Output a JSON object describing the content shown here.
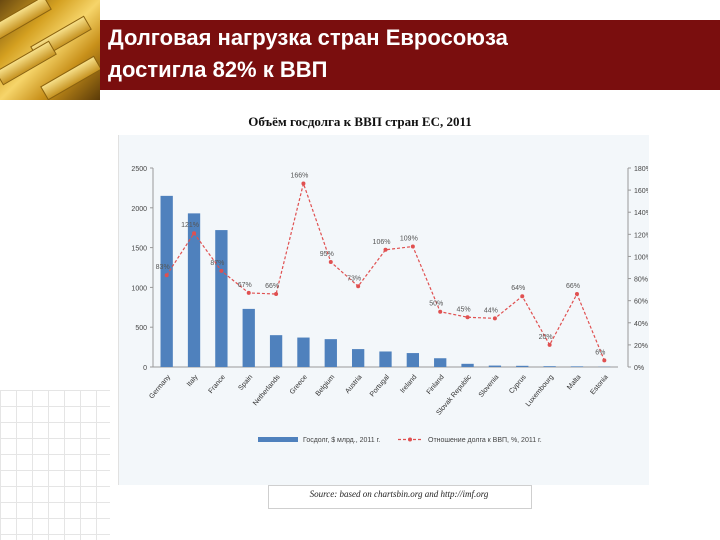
{
  "slide": {
    "title_line1": "Долговая нагрузка стран Евросоюза",
    "title_line2": "достигла 82% к ВВП",
    "source": "Source: based on chartsbin.org and http://imf.org"
  },
  "chart_data": {
    "type": "bar",
    "title": "Объём госдолга к ВВП стран ЕС, 2011",
    "categories": [
      "Germany",
      "Italy",
      "France",
      "Spain",
      "Netherlands",
      "Greece",
      "Belgium",
      "Austria",
      "Portugal",
      "Ireland",
      "Finland",
      "Slovak Republic",
      "Slovenia",
      "Cyprus",
      "Luxembourg",
      "Malta",
      "Estonia"
    ],
    "series": [
      {
        "name": "Госдолг, $ млрд., 2011 г.",
        "type": "bar",
        "axis": "left",
        "color": "#4f81bd",
        "values": [
          2150,
          1930,
          1720,
          730,
          400,
          370,
          350,
          225,
          195,
          175,
          110,
          40,
          18,
          15,
          10,
          8,
          3
        ]
      },
      {
        "name": "Отношение долга к ВВП, %, 2011 г.",
        "type": "line",
        "axis": "right",
        "color": "#e05050",
        "values": [
          83,
          121,
          87,
          67,
          66,
          166,
          95,
          73,
          106,
          109,
          50,
          45,
          44,
          64,
          20,
          66,
          6
        ]
      }
    ],
    "data_labels": [
      "83%",
      "121%",
      "87%",
      "67%",
      "66%",
      "166%",
      "95%",
      "73%",
      "106%",
      "109%",
      "50%",
      "45%",
      "44%",
      "64%",
      "20%",
      "66%",
      "6%"
    ],
    "left_axis": {
      "ticks": [
        "0",
        "500",
        "1000",
        "1500",
        "2000",
        "2500"
      ],
      "range": [
        0,
        2500
      ]
    },
    "right_axis": {
      "ticks": [
        "0%",
        "20%",
        "40%",
        "60%",
        "80%",
        "100%",
        "120%",
        "140%",
        "160%",
        "180%"
      ],
      "range": [
        0,
        180
      ]
    },
    "legend": {
      "position": "bottom"
    }
  },
  "colors": {
    "titlebar": "#7a0e0e",
    "bars": "#4f81bd",
    "line": "#e05050"
  }
}
